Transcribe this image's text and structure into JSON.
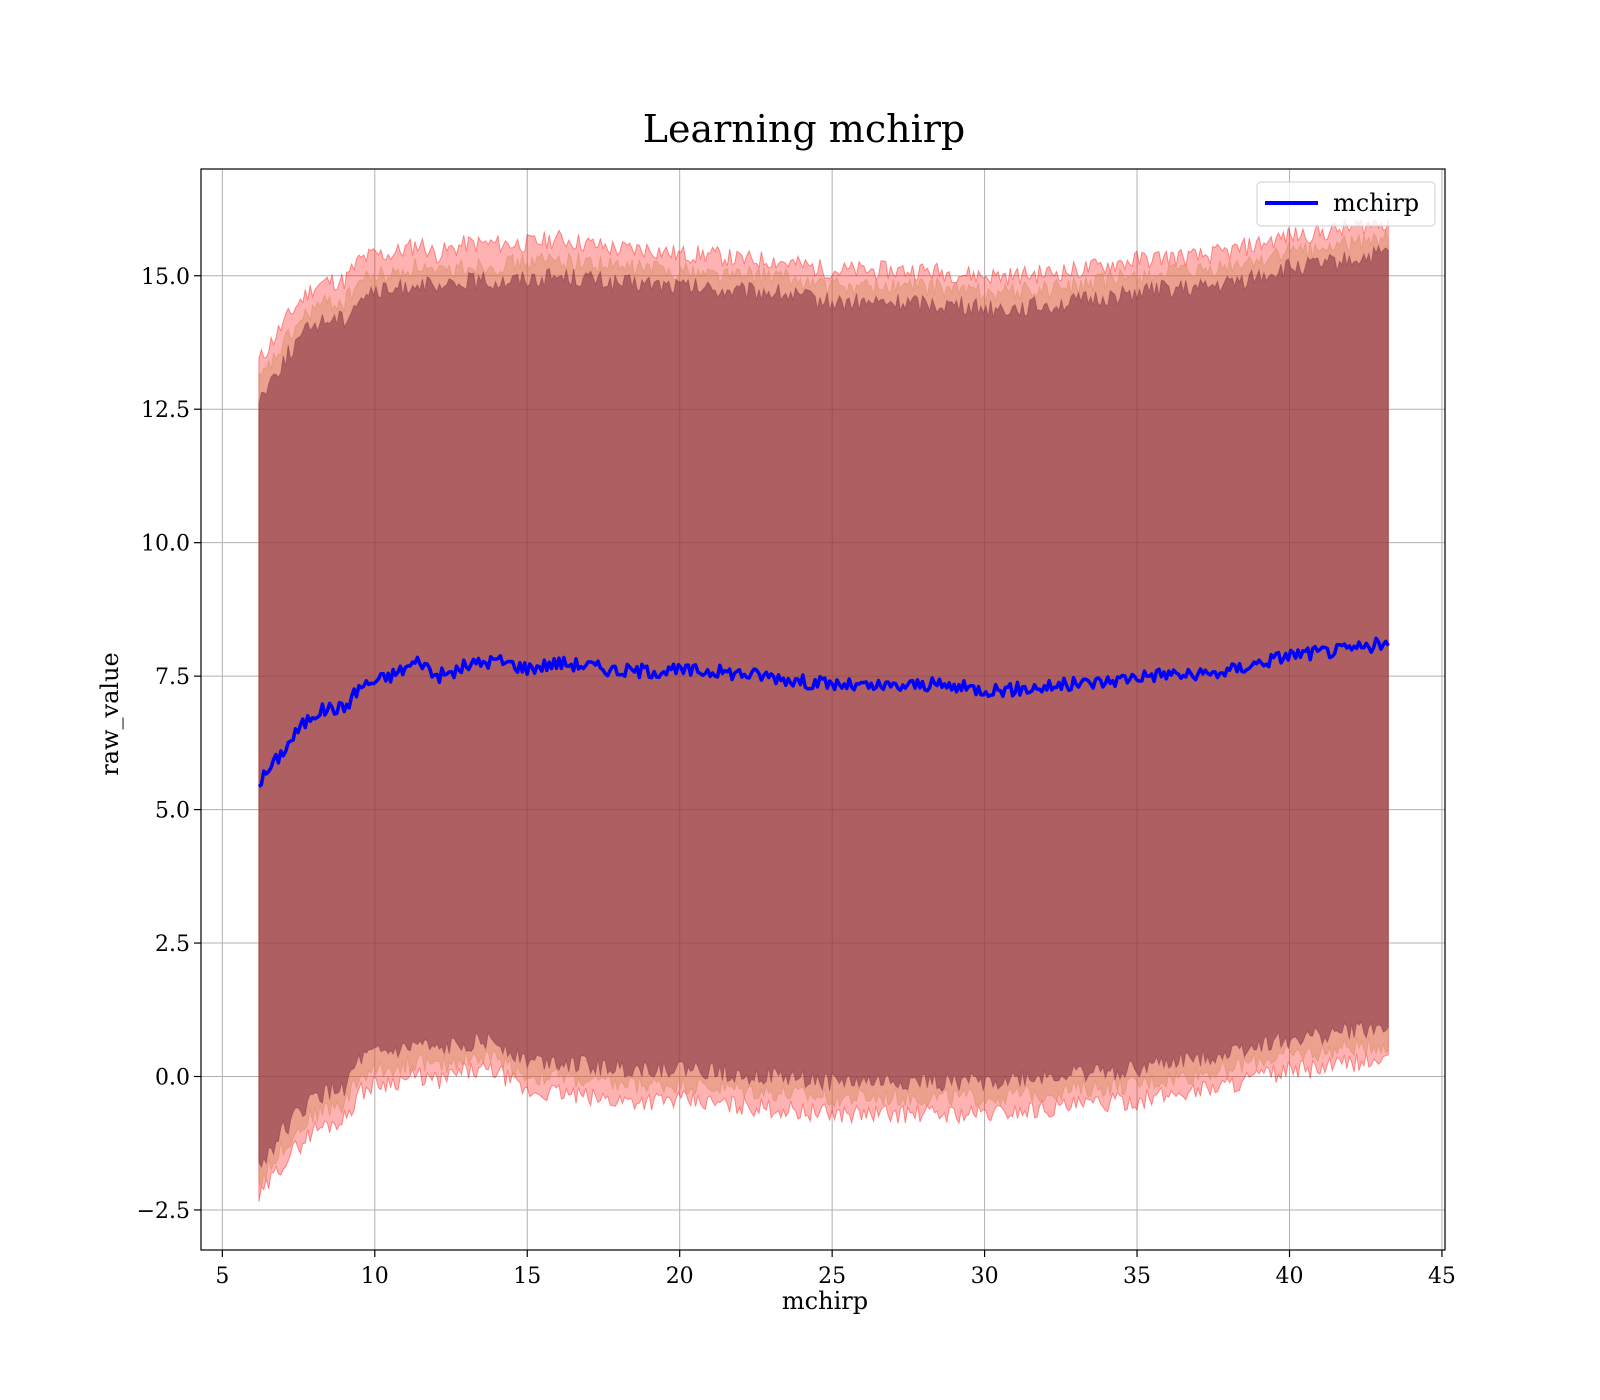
{
  "chart_data": {
    "type": "line",
    "title": "Learning mchirp",
    "xlabel": "mchirp",
    "ylabel": "raw_value",
    "xlim": [
      4.3,
      45.1
    ],
    "ylim": [
      -3.25,
      17.0
    ],
    "xticks": [
      5,
      10,
      15,
      20,
      25,
      30,
      35,
      40,
      45
    ],
    "yticks": [
      -2.5,
      0.0,
      2.5,
      5.0,
      7.5,
      10.0,
      12.5,
      15.0
    ],
    "ytick_labels": [
      "−2.5",
      "0.0",
      "2.5",
      "5.0",
      "7.5",
      "10.0",
      "12.5",
      "15.0"
    ],
    "grid": true,
    "legend_position": "top-right",
    "x_range": [
      6.2,
      43.3
    ],
    "series": [
      {
        "name": "mchirp",
        "color": "#0000ff",
        "x": [
          6.2,
          7.0,
          7.5,
          8.0,
          8.5,
          9.0,
          9.5,
          10.0,
          10.5,
          11.0,
          11.5,
          12.0,
          12.5,
          13.0,
          13.5,
          14.0,
          15.0,
          16.0,
          17.0,
          18.0,
          19.0,
          20.0,
          21.0,
          22.0,
          23.0,
          24.0,
          25.0,
          26.0,
          27.0,
          28.0,
          29.0,
          30.0,
          31.0,
          32.0,
          33.0,
          34.0,
          35.0,
          36.0,
          37.0,
          38.0,
          39.0,
          40.0,
          41.0,
          42.0,
          43.0,
          43.3
        ],
        "y": [
          5.5,
          6.1,
          6.5,
          6.8,
          6.9,
          6.9,
          7.3,
          7.4,
          7.5,
          7.65,
          7.8,
          7.5,
          7.55,
          7.7,
          7.75,
          7.8,
          7.65,
          7.75,
          7.7,
          7.6,
          7.6,
          7.6,
          7.6,
          7.55,
          7.5,
          7.4,
          7.35,
          7.3,
          7.3,
          7.35,
          7.3,
          7.25,
          7.25,
          7.3,
          7.35,
          7.4,
          7.5,
          7.55,
          7.5,
          7.6,
          7.75,
          7.9,
          7.95,
          8.0,
          8.1,
          8.05
        ]
      }
    ],
    "bands": [
      {
        "color": "#ff0000",
        "lower": [
          -2.3,
          -1.6,
          -1.3,
          -1.0,
          -0.9,
          -0.8,
          -0.3,
          -0.15,
          -0.1,
          -0.05,
          0.0,
          -0.1,
          0.0,
          0.1,
          0.1,
          0.1,
          -0.3,
          -0.3,
          -0.4,
          -0.45,
          -0.45,
          -0.45,
          -0.5,
          -0.55,
          -0.6,
          -0.65,
          -0.7,
          -0.7,
          -0.7,
          -0.7,
          -0.7,
          -0.7,
          -0.65,
          -0.6,
          -0.55,
          -0.5,
          -0.45,
          -0.35,
          -0.25,
          -0.15,
          0.0,
          0.1,
          0.15,
          0.25,
          0.3,
          0.25
        ],
        "upper": [
          13.4,
          14.1,
          14.5,
          14.8,
          14.9,
          14.9,
          15.3,
          15.4,
          15.4,
          15.5,
          15.6,
          15.4,
          15.5,
          15.6,
          15.6,
          15.6,
          15.6,
          15.7,
          15.6,
          15.5,
          15.5,
          15.4,
          15.4,
          15.3,
          15.3,
          15.2,
          15.1,
          15.1,
          15.1,
          15.1,
          15.05,
          15.0,
          15.0,
          15.05,
          15.1,
          15.2,
          15.3,
          15.35,
          15.35,
          15.45,
          15.6,
          15.75,
          15.8,
          15.9,
          16.0,
          16.05
        ]
      },
      {
        "color": "#cc8855",
        "lower": [
          -2.0,
          -1.3,
          -1.0,
          -0.7,
          -0.6,
          -0.5,
          0.0,
          0.1,
          0.15,
          0.2,
          0.3,
          0.15,
          0.25,
          0.35,
          0.35,
          0.35,
          0.0,
          0.0,
          -0.1,
          -0.15,
          -0.15,
          -0.15,
          -0.2,
          -0.25,
          -0.3,
          -0.35,
          -0.4,
          -0.4,
          -0.4,
          -0.4,
          -0.4,
          -0.4,
          -0.35,
          -0.3,
          -0.25,
          -0.2,
          -0.15,
          -0.05,
          0.05,
          0.15,
          0.3,
          0.4,
          0.45,
          0.55,
          0.6,
          0.55
        ],
        "upper": [
          13.0,
          13.7,
          14.1,
          14.4,
          14.5,
          14.5,
          14.9,
          15.0,
          15.0,
          15.1,
          15.2,
          15.0,
          15.1,
          15.2,
          15.2,
          15.2,
          15.25,
          15.3,
          15.25,
          15.15,
          15.15,
          15.1,
          15.05,
          15.0,
          15.0,
          14.9,
          14.8,
          14.8,
          14.8,
          14.8,
          14.75,
          14.7,
          14.7,
          14.75,
          14.8,
          14.9,
          15.0,
          15.05,
          15.05,
          15.15,
          15.3,
          15.45,
          15.5,
          15.6,
          15.7,
          15.75
        ]
      },
      {
        "color": "#7a2a40",
        "lower": [
          -1.7,
          -1.0,
          -0.7,
          -0.4,
          -0.3,
          -0.2,
          0.3,
          0.4,
          0.45,
          0.5,
          0.6,
          0.45,
          0.55,
          0.65,
          0.65,
          0.65,
          0.3,
          0.3,
          0.2,
          0.15,
          0.15,
          0.15,
          0.1,
          0.05,
          0.0,
          -0.05,
          -0.1,
          -0.1,
          -0.1,
          -0.1,
          -0.1,
          -0.1,
          -0.05,
          0.0,
          0.05,
          0.1,
          0.15,
          0.25,
          0.35,
          0.45,
          0.6,
          0.7,
          0.75,
          0.85,
          0.9,
          0.85
        ],
        "upper": [
          12.7,
          13.4,
          13.8,
          14.1,
          14.2,
          14.2,
          14.6,
          14.7,
          14.7,
          14.8,
          14.9,
          14.7,
          14.8,
          14.9,
          14.9,
          14.9,
          14.95,
          15.0,
          14.95,
          14.85,
          14.85,
          14.8,
          14.75,
          14.7,
          14.7,
          14.6,
          14.5,
          14.5,
          14.5,
          14.5,
          14.45,
          14.4,
          14.4,
          14.45,
          14.5,
          14.6,
          14.7,
          14.75,
          14.75,
          14.85,
          15.0,
          15.15,
          15.2,
          15.3,
          15.4,
          15.45
        ]
      }
    ]
  }
}
